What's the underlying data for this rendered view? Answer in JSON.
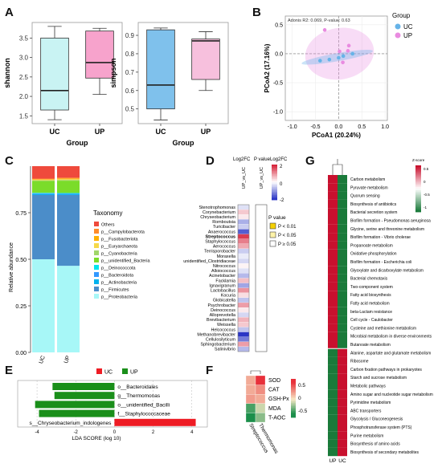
{
  "chart_data": [
    {
      "panel": "A",
      "type": "box",
      "ylabel": "shannon",
      "xlabel": "Group",
      "categories": [
        "UC",
        "UP"
      ],
      "ylim": [
        1.3,
        3.9
      ],
      "yticks": [
        "1.5",
        "2.0",
        "2.5",
        "3.0",
        "3.5"
      ],
      "ytick_values": [
        1.5,
        2.0,
        2.5,
        3.0,
        3.5
      ],
      "boxes": [
        {
          "min": 1.4,
          "q1": 1.65,
          "median": 2.15,
          "q3": 3.5,
          "max": 3.8,
          "color": "#c9f3f3"
        },
        {
          "min": 2.05,
          "q1": 2.47,
          "median": 2.87,
          "q3": 3.68,
          "max": 3.75,
          "color": "#f7a3cc"
        }
      ]
    },
    {
      "panel": "A2",
      "type": "box",
      "ylabel": "simpson",
      "xlabel": "Group",
      "categories": [
        "UC",
        "UP"
      ],
      "ylim": [
        0.42,
        0.97
      ],
      "yticks": [
        "0.5",
        "0.6",
        "0.7",
        "0.8",
        "0.9"
      ],
      "ytick_values": [
        0.5,
        0.6,
        0.7,
        0.8,
        0.9
      ],
      "boxes": [
        {
          "min": 0.44,
          "q1": 0.5,
          "median": 0.63,
          "q3": 0.93,
          "max": 0.94,
          "color": "#7fc1ec"
        },
        {
          "min": 0.6,
          "q1": 0.66,
          "median": 0.87,
          "q3": 0.88,
          "max": 0.92,
          "color": "#f7c0dd"
        }
      ]
    },
    {
      "panel": "B",
      "type": "scatter",
      "annotation": "Adonis R2: 0.069, P-value: 0.63",
      "xlabel": "PCoA1 (20.24%)",
      "ylabel": "PCoA2 (17.16%)",
      "xlim": [
        -1.15,
        1.05
      ],
      "ylim": [
        -1.15,
        0.65
      ],
      "xticks": [
        "-1.0",
        "-0.5",
        "0.0",
        "0.5",
        "1.0"
      ],
      "xtick_values": [
        -1.0,
        -0.5,
        0.0,
        0.5,
        1.0
      ],
      "yticks": [
        "0.5",
        "0.0",
        "-0.5",
        "-1.0"
      ],
      "ytick_values": [
        0.5,
        0.0,
        -0.5,
        -1.0
      ],
      "legend_title": "Group",
      "series": [
        {
          "name": "UC",
          "color": "#66b3e8",
          "points": [
            [
              -0.4,
              -0.12
            ],
            [
              -0.2,
              -0.1
            ],
            [
              0.0,
              -0.07
            ],
            [
              0.1,
              -0.04
            ],
            [
              0.3,
              0.0
            ]
          ]
        },
        {
          "name": "UP",
          "color": "#e98be0",
          "points": [
            [
              -0.3,
              0.41
            ],
            [
              0.02,
              0.04
            ],
            [
              0.09,
              -0.15
            ],
            [
              0.22,
              0.14
            ],
            [
              0.2,
              0.05
            ]
          ]
        }
      ]
    },
    {
      "panel": "C",
      "type": "bar",
      "stacked": true,
      "ylabel": "Relative abundance",
      "categories": [
        "UC",
        "UP"
      ],
      "ylim": [
        0,
        1.0
      ],
      "yticks": [
        "0.00",
        "0.25",
        "0.50",
        "0.75"
      ],
      "ytick_values": [
        0,
        0.25,
        0.5,
        0.75
      ],
      "legend_title": "Taxonomy",
      "series": [
        {
          "name": "p__Proteobacteria",
          "color": "#a7f7f7",
          "values": [
            0.5,
            0.465
          ]
        },
        {
          "name": "p__Firmicutes",
          "color": "#4b8dc9",
          "values": [
            0.345,
            0.38
          ]
        },
        {
          "name": "p__Actinobacteria",
          "color": "#00b2ee",
          "values": [
            0.005,
            0.004
          ]
        },
        {
          "name": "p__Bacteroidota",
          "color": "#3399ff",
          "values": [
            0.004,
            0.004
          ]
        },
        {
          "name": "p__Deinococcota",
          "color": "#00e5ee",
          "values": [
            0.003,
            0.003
          ]
        },
        {
          "name": "p__unidentified_Bacteria",
          "color": "#7bdc2a",
          "values": [
            0.063,
            0.066
          ]
        },
        {
          "name": "p__Cyanobacteria",
          "color": "#a1d66a",
          "values": [
            0.004,
            0.004
          ]
        },
        {
          "name": "p__Euryarchaeota",
          "color": "#f6d94a",
          "values": [
            0.003,
            0.004
          ]
        },
        {
          "name": "p__Fusobacteriota",
          "color": "#ffb000",
          "values": [
            0.003,
            0.004
          ]
        },
        {
          "name": "p__Campylobacterota",
          "color": "#ff8c2a",
          "values": [
            0.003,
            0.004
          ]
        },
        {
          "name": "Others",
          "color": "#ef4a3c",
          "values": [
            0.067,
            0.062
          ]
        }
      ]
    },
    {
      "panel": "D",
      "type": "heatmap",
      "column": "UP_vs_UC",
      "column2": "UP_vs_UC",
      "header_left": "Log2FC",
      "header_mid": "P value",
      "header_right": "Log2FC",
      "colorbar_ticks": [
        "2",
        "0",
        "-2"
      ],
      "pvalue_title": "P value",
      "pvalue_legend": [
        "P < 0.01",
        "P < 0.05",
        "P ≥ 0.05"
      ],
      "highlight_row": "Streptococcus",
      "rows": [
        "Stenotrophomonas",
        "Corynebacterium",
        "Chryseobacterium",
        "Romboutsia",
        "Turicibacter",
        "Anaerococcus",
        "Streptococcus",
        "Staphylococcus",
        "Aerococcus",
        "Terrisporobacter",
        "Moraxella",
        "unidentified_Clostridiaceae",
        "Nitrococcus",
        "Alloiococcus",
        "Acinetobacter",
        "Facklamia",
        "Ignavigranum",
        "Lactobacillus",
        "Kocuria",
        "Globicatella",
        "Psychrobacter",
        "Deinococcus",
        "Alloprevotella",
        "Brevibacterium",
        "Weissella",
        "Helcococcus",
        "Methanobrevibacter",
        "Cellulosilyticum",
        "Sphingobacterium",
        "Salinivibrio"
      ],
      "values": [
        -0.3,
        0.5,
        0.2,
        -0.8,
        -0.5,
        -1.6,
        1.8,
        1.2,
        0.8,
        -0.5,
        -0.2,
        -0.4,
        0.1,
        -0.3,
        -0.7,
        0.6,
        -0.9,
        1.0,
        0.3,
        -0.6,
        0.9,
        0.2,
        -0.4,
        0.7,
        0.5,
        -0.6,
        -2.0,
        -1.3,
        0.9,
        -0.7
      ]
    },
    {
      "panel": "E",
      "type": "bar",
      "orientation": "horizontal",
      "xlabel": "LDA SCORE (log 10)",
      "xlim": [
        -5,
        4.8
      ],
      "xticks": [
        "-4",
        "-2",
        "0",
        "2",
        "4"
      ],
      "xtick_values": [
        -4,
        -2,
        0,
        2,
        4
      ],
      "legend": [
        {
          "name": "UC",
          "color": "#ee1c24"
        },
        {
          "name": "UP",
          "color": "#1a8f1a"
        }
      ],
      "bars": [
        {
          "label": "o__Bacteroidales",
          "value": -3.2,
          "group": "UP"
        },
        {
          "label": "g__Thermomonas",
          "value": -3.1,
          "group": "UP"
        },
        {
          "label": "o__unidentified_Bacilli",
          "value": -4.1,
          "group": "UP"
        },
        {
          "label": "f__Staphylococcaceae",
          "value": -3.9,
          "group": "UP"
        },
        {
          "label": "s__Chryseobacterium_indologenes",
          "value": 4.2,
          "group": "UC"
        }
      ]
    },
    {
      "panel": "F",
      "type": "heatmap",
      "columns": [
        "Streptococcus",
        "Thermomonas"
      ],
      "rows": [
        "SOD",
        "CAT",
        "GSH-Px",
        "MDA",
        "T-AOC"
      ],
      "values": [
        [
          0.2,
          0.6
        ],
        [
          0.2,
          0.3
        ],
        [
          0.25,
          0.2
        ],
        [
          -0.4,
          -0.1
        ],
        [
          -0.5,
          -0.25
        ]
      ],
      "colorbar_ticks": [
        "0.5",
        "0",
        "-0.5"
      ]
    },
    {
      "panel": "G",
      "type": "heatmap",
      "columns": [
        "UP",
        "UC"
      ],
      "colorbar_title": "Z-score",
      "colorbar_ticks": [
        "0.5",
        "0",
        "-0.5",
        "-1"
      ],
      "rows": [
        "Carbon metabolism",
        "Pyruvate metabolism",
        "Quorum sensing",
        "Biosynthesis of antibiotics",
        "Bacterial secretion system",
        "Biofilm formation - Pseudomonas aeruginosa",
        "Glycine, serine and threonine metabolism",
        "Biofilm formation - Vibrio cholerae",
        "Propanoate metabolism",
        "Oxidative phosphorylation",
        "Biofilm formation - Escherichia coli",
        "Glyoxylate and dicarboxylate metabolism",
        "Bacterial chemotaxis",
        "Two-component system",
        "Fatty acid biosynthesis",
        "Fatty acid metabolism",
        "beta-Lactam resistance",
        "Cell cycle - Caulobacter",
        "Cysteine and methionine metabolism",
        "Microbial metabolism in diverse environments",
        "Butanoate metabolism",
        "Alanine, aspartate and glutamate metabolism",
        "Ribosome",
        "Carbon fixation pathways in prokaryotes",
        "Starch and sucrose metabolism",
        "Metabolic pathways",
        "Amino sugar and nucleotide sugar metabolism",
        "Pyrimidine metabolism",
        "ABC transporters",
        "Glycolysis / Gluconeogenesis",
        "Phosphotransferase system (PTS)",
        "Purine metabolism",
        "Biosynthesis of amino acids",
        "Biosynthesis of secondary metabolites"
      ],
      "split_after": 21
    }
  ],
  "panel_labels": [
    "A",
    "B",
    "C",
    "D",
    "E",
    "F",
    "G"
  ],
  "legend_b_items": [
    "UC",
    "UP"
  ],
  "colors": {
    "red": "#c8102e",
    "green": "#1a7a3a",
    "white": "#ffffff"
  }
}
